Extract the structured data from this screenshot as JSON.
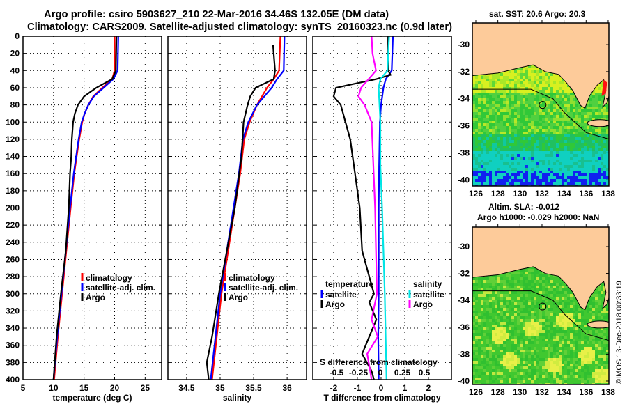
{
  "title_line1": "Argo profile: csiro 5903627_210 22-Mar-2016 34.46S 132.05E (DM data)",
  "title_line2": "Climatology: CARS2009. Satellite-adjusted climatology: synTS_20160323.nc (0.9d later)",
  "credit": "©IMOS 13-Dec-2018 00:33:19",
  "colors": {
    "climatology": "#ff0000",
    "satellite": "#0000ff",
    "argo": "#000000",
    "sal_satellite": "#00e5e5",
    "sal_argo": "#ff00ff",
    "land": "#fdcb9a"
  },
  "chart_data": [
    {
      "type": "line",
      "xlabel": "temperature (deg C)",
      "ylabel": "depth",
      "xlim": [
        5,
        27.7
      ],
      "ylim": [
        400,
        0
      ],
      "xticks": [
        "5",
        "10",
        "15",
        "20",
        "25"
      ],
      "xtick_values": [
        5,
        10,
        15,
        20,
        25
      ],
      "yticks": [
        "0",
        "20",
        "40",
        "60",
        "80",
        "100",
        "120",
        "140",
        "160",
        "180",
        "200",
        "220",
        "240",
        "260",
        "280",
        "300",
        "320",
        "340",
        "360",
        "380",
        "400"
      ],
      "grid": true,
      "legend": "center-right",
      "series": [
        {
          "name": "climatology",
          "depth": [
            0,
            40,
            50,
            60,
            70,
            80,
            90,
            100,
            120,
            140,
            160,
            200,
            250,
            300,
            350,
            400
          ],
          "values": [
            20.0,
            20.0,
            19.6,
            18.0,
            16.5,
            15.7,
            15.1,
            14.7,
            14.2,
            13.8,
            13.4,
            12.8,
            12.1,
            11.4,
            10.7,
            10.1
          ]
        },
        {
          "name": "satellite-adj. clim.",
          "depth": [
            0,
            40,
            50,
            60,
            70,
            80,
            90,
            100,
            120,
            140,
            160,
            200,
            250,
            300,
            350,
            400
          ],
          "values": [
            20.6,
            20.5,
            19.8,
            18.2,
            16.6,
            15.7,
            15.1,
            14.6,
            14.1,
            13.7,
            13.3,
            12.7,
            12.0,
            11.3,
            10.6,
            10.0
          ]
        },
        {
          "name": "Argo",
          "depth": [
            0,
            40,
            50,
            60,
            70,
            80,
            90,
            100,
            120,
            140,
            160,
            200,
            250,
            300,
            350,
            400
          ],
          "values": [
            20.3,
            20.2,
            19.6,
            17.0,
            15.0,
            14.0,
            13.5,
            13.2,
            13.0,
            12.9,
            12.7,
            12.5,
            12.0,
            11.2,
            10.5,
            10.0
          ]
        }
      ]
    },
    {
      "type": "line",
      "xlabel": "salinity",
      "ylabel": "depth",
      "xlim": [
        34.22,
        36.29
      ],
      "ylim": [
        400,
        0
      ],
      "xticks": [
        "34.5",
        "35",
        "35.5",
        "36"
      ],
      "xtick_values": [
        34.5,
        35,
        35.5,
        36
      ],
      "grid": true,
      "legend": "center-right",
      "series": [
        {
          "name": "climatology",
          "depth": [
            0,
            40,
            50,
            60,
            80,
            100,
            120,
            160,
            200,
            250,
            300,
            350,
            400
          ],
          "values": [
            35.9,
            35.88,
            35.8,
            35.7,
            35.55,
            35.44,
            35.36,
            35.3,
            35.22,
            35.12,
            35.02,
            34.95,
            34.88
          ]
        },
        {
          "name": "satellite-adj. clim.",
          "depth": [
            0,
            40,
            50,
            60,
            80,
            100,
            120,
            160,
            200,
            250,
            300,
            350,
            400
          ],
          "values": [
            35.96,
            35.95,
            35.85,
            35.77,
            35.55,
            35.42,
            35.34,
            35.28,
            35.2,
            35.1,
            35.0,
            34.93,
            34.86
          ]
        },
        {
          "name": "Argo",
          "depth": [
            10,
            40,
            50,
            60,
            70,
            80,
            100,
            140,
            200,
            250,
            300,
            350,
            380,
            400
          ],
          "values": [
            35.79,
            35.82,
            35.8,
            35.53,
            35.45,
            35.41,
            35.35,
            35.32,
            35.22,
            35.1,
            34.98,
            34.88,
            34.8,
            34.83
          ]
        }
      ]
    },
    {
      "type": "line",
      "xlabel": "T difference from climatology",
      "x2label": "S difference from climatology",
      "ylabel": "depth",
      "xlim": [
        -2.88,
        2.97
      ],
      "x2lim": [
        -0.8,
        0.8
      ],
      "ylim": [
        400,
        0
      ],
      "xticks": [
        "-2",
        "-1",
        "0",
        "1",
        "2"
      ],
      "xtick_values": [
        -2,
        -1,
        0,
        1,
        2
      ],
      "x2ticks": [
        "-0.5",
        "-0.25",
        "0",
        "0.25",
        "0.5"
      ],
      "x2tick_values": [
        -0.5,
        -0.25,
        0,
        0.25,
        0.5
      ],
      "grid": true,
      "legend_temperature_title": "temperature",
      "legend_salinity_title": "salinity",
      "series": [
        {
          "name": "satellite",
          "group": "temperature",
          "depth": [
            0,
            40,
            50,
            60,
            80,
            100,
            150,
            200,
            250,
            300,
            350,
            400
          ],
          "values": [
            0.5,
            0.45,
            0.2,
            0.1,
            0.0,
            -0.05,
            -0.08,
            -0.1,
            -0.1,
            -0.1,
            -0.12,
            -0.1
          ]
        },
        {
          "name": "Argo",
          "group": "temperature",
          "depth": [
            0,
            30,
            40,
            45,
            50,
            60,
            70,
            80,
            90,
            100,
            120,
            160,
            200,
            250,
            280,
            300,
            310,
            330,
            350,
            370,
            390,
            400
          ],
          "values": [
            0.3,
            0.3,
            0.3,
            0.4,
            -0.2,
            -1.9,
            -2.0,
            -1.7,
            -1.6,
            -1.5,
            -1.3,
            -1.1,
            -0.9,
            -0.8,
            -0.5,
            -0.3,
            -0.5,
            -0.2,
            -0.5,
            -0.8,
            -0.4,
            -0.3
          ]
        },
        {
          "name": "satellite",
          "group": "salinity",
          "depth": [
            0,
            40,
            50,
            60,
            80,
            100,
            150,
            200,
            300,
            400
          ],
          "values": [
            0.1,
            0.08,
            0.0,
            -0.02,
            -0.01,
            0.0,
            0.0,
            0.02,
            0.05,
            0.07
          ]
        },
        {
          "name": "Argo",
          "group": "salinity",
          "depth": [
            0,
            20,
            40,
            60,
            70,
            80,
            100,
            150,
            200,
            250,
            300,
            330,
            350,
            370,
            400
          ],
          "values": [
            -0.1,
            -0.09,
            -0.05,
            -0.22,
            -0.25,
            -0.18,
            -0.1,
            -0.08,
            -0.06,
            -0.05,
            -0.04,
            -0.1,
            -0.03,
            -0.15,
            -0.1
          ]
        }
      ]
    }
  ],
  "map_sst": {
    "title": "sat. SST: 20.6 Argo: 20.3",
    "lat_ticks": [
      "-30",
      "-32",
      "-34",
      "-36",
      "-38",
      "-40"
    ],
    "lon_ticks": [
      "126",
      "128",
      "130",
      "132",
      "134",
      "136",
      "138"
    ]
  },
  "map_sla": {
    "title1": "Altim. SLA: -0.012",
    "title2": "Argo h1000: -0.029 h2000: NaN",
    "lat_ticks": [
      "-30",
      "-32",
      "-34",
      "-36",
      "-38",
      "-40"
    ],
    "lon_ticks": [
      "126",
      "128",
      "130",
      "132",
      "134",
      "136",
      "138"
    ]
  },
  "argo_position": {
    "lon": 132.05,
    "lat": -34.46
  }
}
